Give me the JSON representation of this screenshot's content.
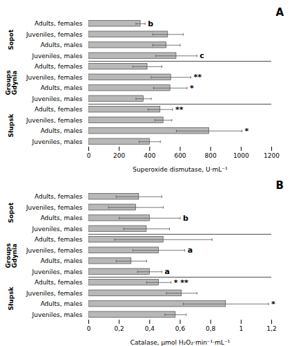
{
  "chart_data": [
    {
      "type": "bar",
      "orientation": "horizontal",
      "title": "A",
      "categories": [
        "Adults, females",
        "Juveniles, females",
        "Adults, males",
        "Juveniles, males",
        "Adults, females",
        "Juveniles, females",
        "Adults, males",
        "Juveniles, males",
        "Adults, females",
        "Juveniles, females",
        "Adults, males",
        "Juveniles, males"
      ],
      "values": [
        340,
        520,
        510,
        575,
        385,
        540,
        535,
        360,
        470,
        490,
        790,
        400
      ],
      "errors": [
        30,
        100,
        90,
        135,
        95,
        130,
        110,
        50,
        80,
        55,
        215,
        70
      ],
      "annotations": [
        "b",
        null,
        null,
        "c",
        null,
        "**",
        "*",
        null,
        "**",
        null,
        "*",
        null
      ],
      "groups": [
        "Sopot",
        "Groups\nGdynia",
        "Słupsk"
      ],
      "group_sizes": [
        4,
        4,
        4
      ],
      "xlabel": "Superoxide dismutase, U·mL⁻¹",
      "xlim": [
        0,
        1200
      ],
      "xticks": [
        0,
        200,
        400,
        600,
        800,
        1000,
        1200
      ],
      "color": "#b8b8b8",
      "grid": false
    },
    {
      "type": "bar",
      "orientation": "horizontal",
      "title": "B",
      "categories": [
        "Adults, females",
        "Juveniles, females",
        "Adults, males",
        "Juveniles, males",
        "Adults, females",
        "Juveniles, females",
        "Adults, males",
        "Juveniles, males",
        "Adults, females",
        "Juveniles, females",
        "Adults, males",
        "Juveniles, males"
      ],
      "values": [
        0.33,
        0.31,
        0.4,
        0.38,
        0.49,
        0.46,
        0.28,
        0.4,
        0.46,
        0.61,
        0.9,
        0.57
      ],
      "errors": [
        0.15,
        0.18,
        0.2,
        0.15,
        0.32,
        0.17,
        0.1,
        0.08,
        0.08,
        0.1,
        0.28,
        0.07
      ],
      "annotations": [
        null,
        null,
        "b",
        null,
        null,
        "a",
        null,
        "a",
        "* **",
        null,
        "*",
        null
      ],
      "groups": [
        "Sopot",
        "Groups\nGdynia",
        "Słupsk"
      ],
      "group_sizes": [
        4,
        4,
        4
      ],
      "xlabel": "Catalase, μmol H₂O₂·min⁻¹·mL⁻¹",
      "xlim": [
        0,
        1.2
      ],
      "xticks": [
        0,
        {
          "value": 0.2,
          "label": "0,2"
        },
        {
          "value": 0.4,
          "label": "0,4"
        },
        {
          "value": 0.6,
          "label": "0,6"
        },
        {
          "value": 0.8,
          "label": "0,8"
        },
        1,
        {
          "value": 1.2,
          "label": "1,2"
        }
      ],
      "color": "#b8b8b8",
      "grid": false
    }
  ]
}
